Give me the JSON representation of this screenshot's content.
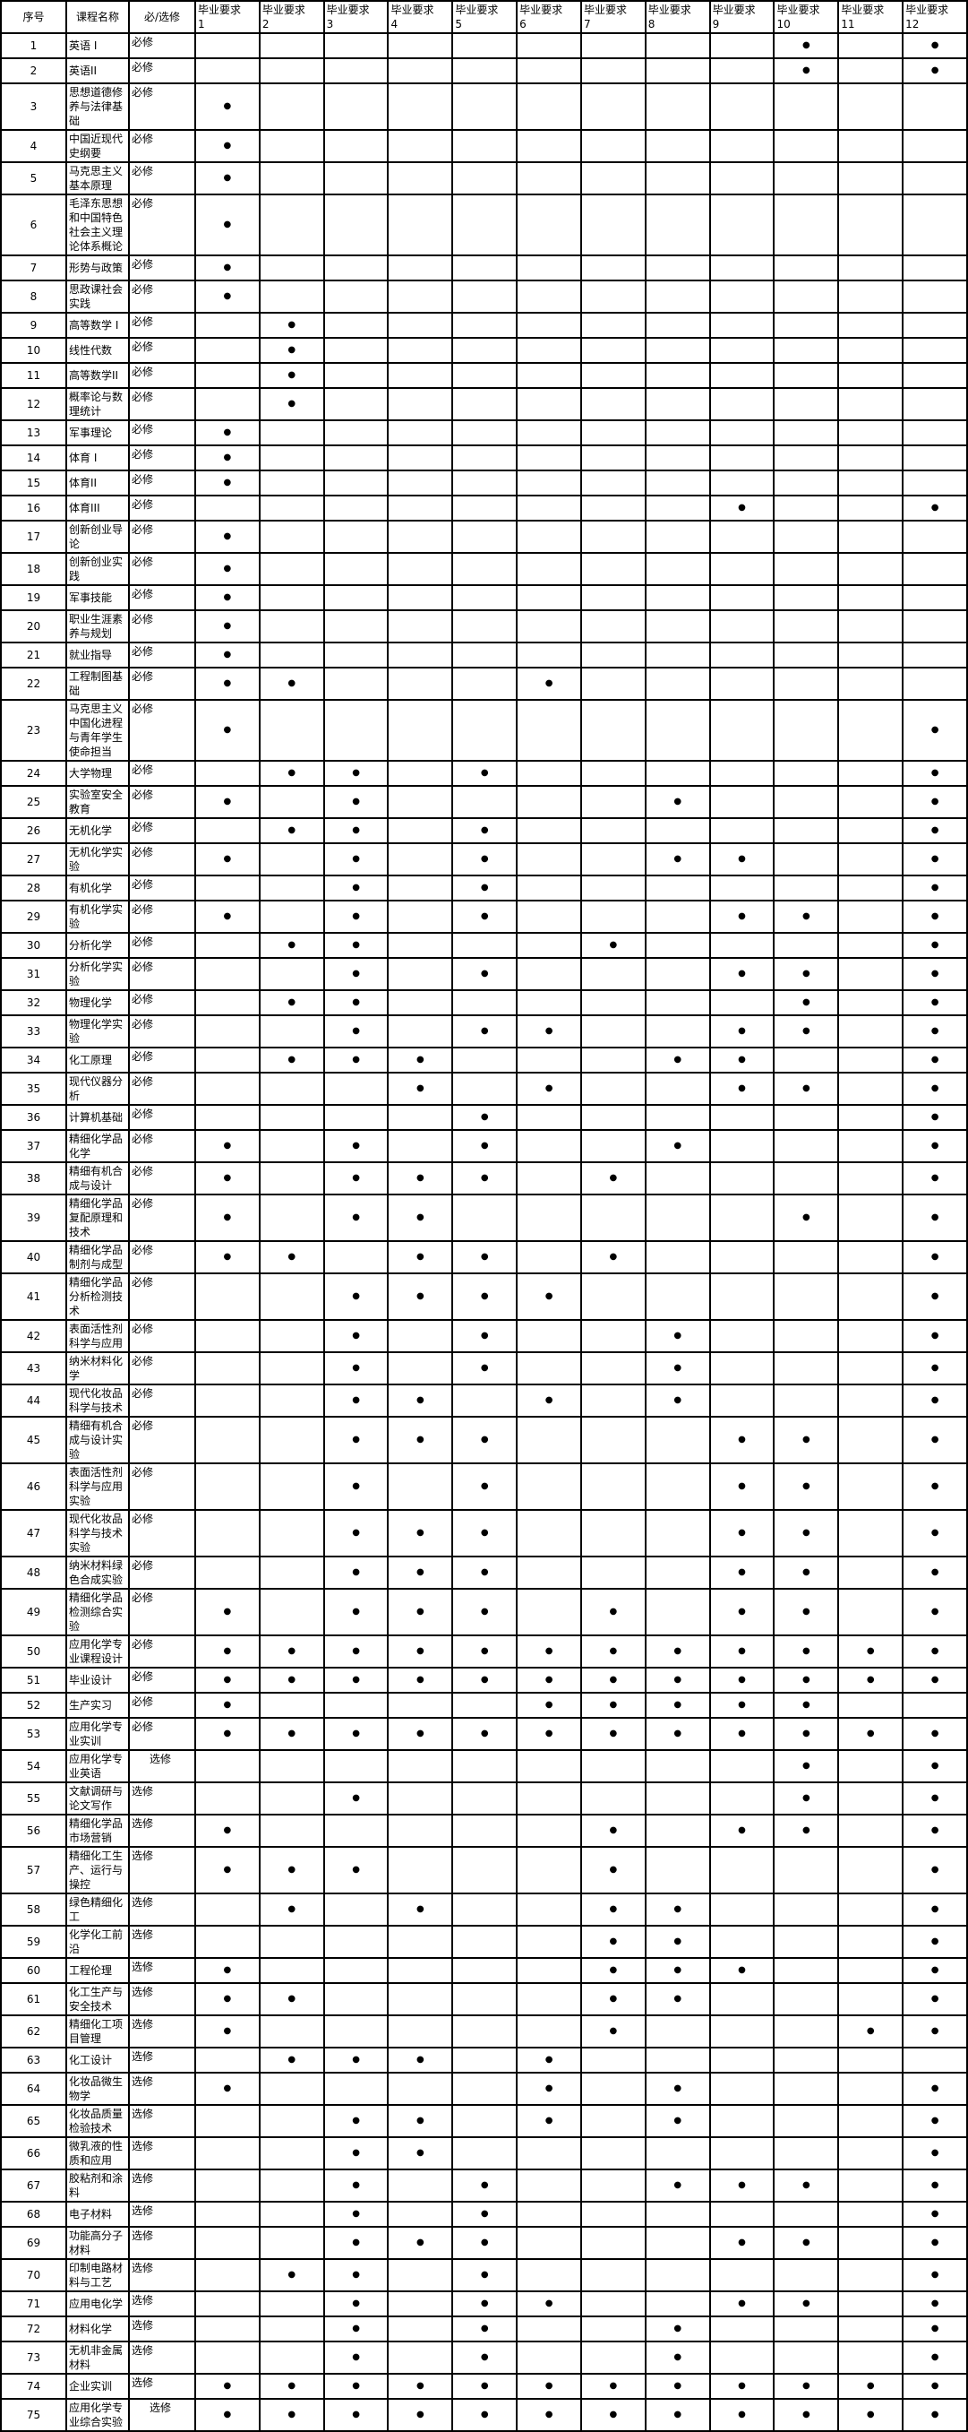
{
  "colors": {
    "border": "#000000",
    "background": "#ffffff",
    "text": "#000000"
  },
  "table": {
    "dot": "●",
    "headers": {
      "index": "序号",
      "course": "课程名称",
      "type": "必/选修",
      "req_label": "毕业要求",
      "req_numbers": [
        "1",
        "2",
        "3",
        "4",
        "5",
        "6",
        "7",
        "8",
        "9",
        "10",
        "11",
        "12"
      ]
    },
    "rows": [
      {
        "no": "1",
        "name": "英语 I",
        "type": "必修",
        "reqs": [
          10,
          12
        ]
      },
      {
        "no": "2",
        "name": "英语II",
        "type": "必修",
        "reqs": [
          10,
          12
        ]
      },
      {
        "no": "3",
        "name": "思想道德修养与法律基础",
        "type": "必修",
        "reqs": [
          1
        ]
      },
      {
        "no": "4",
        "name": "中国近现代史纲要",
        "type": "必修",
        "reqs": [
          1
        ]
      },
      {
        "no": "5",
        "name": "马克思主义基本原理",
        "type": "必修",
        "reqs": [
          1
        ]
      },
      {
        "no": "6",
        "name": "毛泽东思想和中国特色社会主义理论体系概论",
        "type": "必修",
        "reqs": [
          1
        ]
      },
      {
        "no": "7",
        "name": "形势与政策",
        "type": "必修",
        "reqs": [
          1
        ]
      },
      {
        "no": "8",
        "name": "思政课社会实践",
        "type": "必修",
        "reqs": [
          1
        ]
      },
      {
        "no": "9",
        "name": "高等数学 I",
        "type": "必修",
        "reqs": [
          2
        ]
      },
      {
        "no": "10",
        "name": "线性代数",
        "type": "必修",
        "reqs": [
          2
        ]
      },
      {
        "no": "11",
        "name": "高等数学II",
        "type": "必修",
        "reqs": [
          2
        ]
      },
      {
        "no": "12",
        "name": "概率论与数理统计",
        "type": "必修",
        "reqs": [
          2
        ]
      },
      {
        "no": "13",
        "name": "军事理论",
        "type": "必修",
        "reqs": [
          1
        ]
      },
      {
        "no": "14",
        "name": "体育 I",
        "type": "必修",
        "reqs": [
          1
        ]
      },
      {
        "no": "15",
        "name": "体育II",
        "type": "必修",
        "reqs": [
          1
        ]
      },
      {
        "no": "16",
        "name": "体育III",
        "type": "必修",
        "reqs": [
          9,
          12
        ]
      },
      {
        "no": "17",
        "name": "创新创业导论",
        "type": "必修",
        "reqs": [
          1
        ]
      },
      {
        "no": "18",
        "name": "创新创业实践",
        "type": "必修",
        "reqs": [
          1
        ]
      },
      {
        "no": "19",
        "name": "军事技能",
        "type": "必修",
        "reqs": [
          1
        ]
      },
      {
        "no": "20",
        "name": "职业生涯素养与规划",
        "type": "必修",
        "reqs": [
          1
        ]
      },
      {
        "no": "21",
        "name": "就业指导",
        "type": "必修",
        "reqs": [
          1
        ]
      },
      {
        "no": "22",
        "name": "工程制图基础",
        "type": "必修",
        "reqs": [
          1,
          2,
          6
        ]
      },
      {
        "no": "23",
        "name": "马克思主义中国化进程与青年学生使命担当",
        "type": "必修",
        "reqs": [
          1,
          12
        ]
      },
      {
        "no": "24",
        "name": "大学物理",
        "type": "必修",
        "reqs": [
          2,
          3,
          5,
          12
        ]
      },
      {
        "no": "25",
        "name": "实验室安全教育",
        "type": "必修",
        "reqs": [
          1,
          3,
          8,
          12
        ]
      },
      {
        "no": "26",
        "name": "无机化学",
        "type": "必修",
        "reqs": [
          2,
          3,
          5,
          12
        ]
      },
      {
        "no": "27",
        "name": "无机化学实验",
        "type": "必修",
        "reqs": [
          1,
          3,
          5,
          8,
          9,
          12
        ]
      },
      {
        "no": "28",
        "name": "有机化学",
        "type": "必修",
        "reqs": [
          3,
          5,
          12
        ]
      },
      {
        "no": "29",
        "name": "有机化学实验",
        "type": "必修",
        "reqs": [
          1,
          3,
          5,
          9,
          10,
          12
        ]
      },
      {
        "no": "30",
        "name": "分析化学",
        "type": "必修",
        "reqs": [
          2,
          3,
          7,
          12
        ]
      },
      {
        "no": "31",
        "name": "分析化学实验",
        "type": "必修",
        "reqs": [
          3,
          5,
          9,
          10,
          12
        ]
      },
      {
        "no": "32",
        "name": "物理化学",
        "type": "必修",
        "reqs": [
          2,
          3,
          10,
          12
        ]
      },
      {
        "no": "33",
        "name": "物理化学实验",
        "type": "必修",
        "reqs": [
          3,
          5,
          6,
          9,
          10,
          12
        ]
      },
      {
        "no": "34",
        "name": "化工原理",
        "type": "必修",
        "reqs": [
          2,
          3,
          4,
          8,
          9,
          12
        ]
      },
      {
        "no": "35",
        "name": "现代仪器分析",
        "type": "必修",
        "reqs": [
          4,
          6,
          9,
          10,
          12
        ]
      },
      {
        "no": "36",
        "name": "计算机基础",
        "type": "必修",
        "reqs": [
          5,
          12
        ]
      },
      {
        "no": "37",
        "name": "精细化学品化学",
        "type": "必修",
        "reqs": [
          1,
          3,
          5,
          8,
          12
        ]
      },
      {
        "no": "38",
        "name": "精细有机合成与设计",
        "type": "必修",
        "reqs": [
          1,
          3,
          4,
          5,
          7,
          12
        ]
      },
      {
        "no": "39",
        "name": "精细化学品复配原理和技术",
        "type": "必修",
        "reqs": [
          1,
          3,
          4,
          10,
          12
        ]
      },
      {
        "no": "40",
        "name": "精细化学品制剂与成型",
        "type": "必修",
        "reqs": [
          1,
          2,
          4,
          5,
          7,
          12
        ]
      },
      {
        "no": "41",
        "name": "精细化学品分析检测技术",
        "type": "必修",
        "reqs": [
          3,
          4,
          5,
          6,
          12
        ]
      },
      {
        "no": "42",
        "name": "表面活性剂科学与应用",
        "type": "必修",
        "reqs": [
          3,
          5,
          8,
          12
        ]
      },
      {
        "no": "43",
        "name": "纳米材料化学",
        "type": "必修",
        "reqs": [
          3,
          5,
          8,
          12
        ]
      },
      {
        "no": "44",
        "name": "现代化妆品科学与技术",
        "type": "必修",
        "reqs": [
          3,
          4,
          6,
          8,
          12
        ]
      },
      {
        "no": "45",
        "name": "精细有机合成与设计实验",
        "type": "必修",
        "reqs": [
          3,
          4,
          5,
          9,
          10,
          12
        ]
      },
      {
        "no": "46",
        "name": "表面活性剂科学与应用实验",
        "type": "必修",
        "reqs": [
          3,
          5,
          9,
          10,
          12
        ]
      },
      {
        "no": "47",
        "name": "现代化妆品科学与技术实验",
        "type": "必修",
        "reqs": [
          3,
          4,
          5,
          9,
          10,
          12
        ]
      },
      {
        "no": "48",
        "name": "纳米材料绿色合成实验",
        "type": "必修",
        "reqs": [
          3,
          4,
          5,
          9,
          10,
          12
        ]
      },
      {
        "no": "49",
        "name": "精细化学品检测综合实验",
        "type": "必修",
        "reqs": [
          1,
          3,
          4,
          5,
          7,
          9,
          10,
          12
        ]
      },
      {
        "no": "50",
        "name": "应用化学专业课程设计",
        "type": "必修",
        "reqs": [
          1,
          2,
          3,
          4,
          5,
          6,
          7,
          8,
          9,
          10,
          11,
          12
        ]
      },
      {
        "no": "51",
        "name": "毕业设计",
        "type": "必修",
        "reqs": [
          1,
          2,
          3,
          4,
          5,
          6,
          7,
          8,
          9,
          10,
          11,
          12
        ]
      },
      {
        "no": "52",
        "name": "生产实习",
        "type": "必修",
        "reqs": [
          1,
          6,
          7,
          8,
          9,
          10
        ]
      },
      {
        "no": "53",
        "name": "应用化学专业实训",
        "type": "必修",
        "reqs": [
          1,
          2,
          3,
          4,
          5,
          6,
          7,
          8,
          9,
          10,
          11,
          12
        ]
      },
      {
        "no": "54",
        "name": "应用化学专业英语",
        "type": "选修",
        "indent": true,
        "reqs": [
          10,
          12
        ]
      },
      {
        "no": "55",
        "name": "文献调研与论文写作",
        "type": "选修",
        "reqs": [
          3,
          10,
          12
        ]
      },
      {
        "no": "56",
        "name": "精细化学品市场营销",
        "type": "选修",
        "reqs": [
          1,
          7,
          9,
          10,
          12
        ]
      },
      {
        "no": "57",
        "name": "精细化工生产、运行与操控",
        "type": "选修",
        "reqs": [
          1,
          2,
          3,
          7,
          12
        ]
      },
      {
        "no": "58",
        "name": "绿色精细化工",
        "type": "选修",
        "reqs": [
          2,
          4,
          7,
          8,
          12
        ]
      },
      {
        "no": "59",
        "name": "化学化工前沿",
        "type": "选修",
        "reqs": [
          7,
          8,
          12
        ]
      },
      {
        "no": "60",
        "name": "工程伦理",
        "type": "选修",
        "reqs": [
          1,
          7,
          8,
          9,
          12
        ]
      },
      {
        "no": "61",
        "name": "化工生产与安全技术",
        "type": "选修",
        "reqs": [
          1,
          2,
          7,
          8,
          12
        ]
      },
      {
        "no": "62",
        "name": "精细化工项目管理",
        "type": "选修",
        "reqs": [
          1,
          7,
          11,
          12
        ]
      },
      {
        "no": "63",
        "name": "化工设计",
        "type": "选修",
        "reqs": [
          2,
          3,
          4,
          6
        ]
      },
      {
        "no": "64",
        "name": "化妆品微生物学",
        "type": "选修",
        "reqs": [
          1,
          6,
          8,
          12
        ]
      },
      {
        "no": "65",
        "name": "化妆品质量检验技术",
        "type": "选修",
        "reqs": [
          3,
          4,
          6,
          8,
          12
        ]
      },
      {
        "no": "66",
        "name": "微乳液的性质和应用",
        "type": "选修",
        "reqs": [
          3,
          4,
          12
        ]
      },
      {
        "no": "67",
        "name": "胶粘剂和涂料",
        "type": "选修",
        "reqs": [
          3,
          5,
          8,
          9,
          10,
          12
        ]
      },
      {
        "no": "68",
        "name": "电子材料",
        "type": "选修",
        "reqs": [
          3,
          5,
          12
        ]
      },
      {
        "no": "69",
        "name": "功能高分子材料",
        "type": "选修",
        "reqs": [
          3,
          4,
          5,
          9,
          10,
          12
        ]
      },
      {
        "no": "70",
        "name": "印制电路材料与工艺",
        "type": "选修",
        "reqs": [
          2,
          3,
          5,
          12
        ]
      },
      {
        "no": "71",
        "name": "应用电化学",
        "type": "选修",
        "reqs": [
          3,
          5,
          6,
          9,
          10,
          12
        ]
      },
      {
        "no": "72",
        "name": "材料化学",
        "type": "选修",
        "reqs": [
          3,
          5,
          8,
          12
        ]
      },
      {
        "no": "73",
        "name": "无机非金属材料",
        "type": "选修",
        "reqs": [
          3,
          5,
          8,
          12
        ]
      },
      {
        "no": "74",
        "name": "企业实训",
        "type": "选修",
        "reqs": [
          1,
          2,
          3,
          4,
          5,
          6,
          7,
          8,
          9,
          10,
          11,
          12
        ]
      },
      {
        "no": "75",
        "name": "应用化学专业综合实验",
        "type": "选修",
        "indent": true,
        "reqs": [
          1,
          2,
          3,
          4,
          5,
          6,
          7,
          8,
          9,
          10,
          11,
          12
        ]
      }
    ]
  }
}
